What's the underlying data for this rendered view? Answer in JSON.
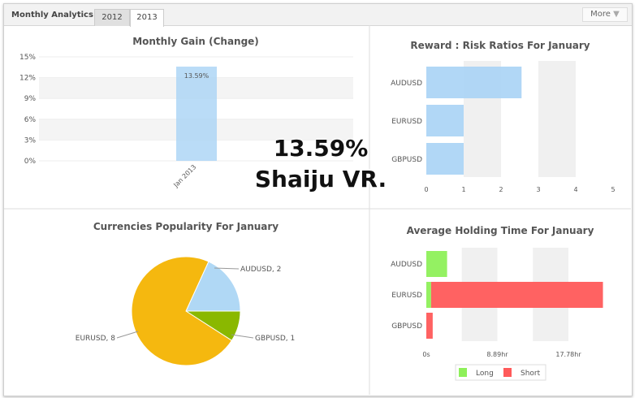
{
  "header": {
    "title": "Monthly Analytics",
    "tabs": [
      "2012",
      "2013"
    ],
    "active_tab": "2013",
    "more_label": "More"
  },
  "watermark": {
    "value": "13.59%",
    "name": "Shaiju VR."
  },
  "chart_data": [
    {
      "type": "bar",
      "title": "Monthly Gain (Change)",
      "categories": [
        "Jan 2013"
      ],
      "values": [
        13.59
      ],
      "data_labels": [
        "13.59%"
      ],
      "yticks": [
        "0%",
        "3%",
        "6%",
        "9%",
        "12%",
        "15%"
      ],
      "ylim": [
        0,
        15
      ],
      "color": "#a9d3f5"
    },
    {
      "type": "bar",
      "orientation": "horizontal",
      "title": "Reward : Risk Ratios For January",
      "categories": [
        "AUDUSD",
        "EURUSD",
        "GBPUSD"
      ],
      "values": [
        2.55,
        1,
        1
      ],
      "xticks": [
        "0",
        "1",
        "2",
        "3",
        "4",
        "5"
      ],
      "xlim": [
        0,
        5
      ],
      "color": "#a9d3f5"
    },
    {
      "type": "pie",
      "title": "Currencies Popularity For January",
      "labels": [
        "AUDUSD, 2",
        "GBPUSD, 1",
        "EURUSD, 8"
      ],
      "categories": [
        "AUDUSD",
        "GBPUSD",
        "EURUSD"
      ],
      "values": [
        2,
        1,
        8
      ],
      "colors": [
        "#b0d8f5",
        "#8ab800",
        "#f5b80f"
      ]
    },
    {
      "type": "bar",
      "orientation": "horizontal",
      "stacked": true,
      "title": "Average Holding Time For January",
      "categories": [
        "AUDUSD",
        "EURUSD",
        "GBPUSD"
      ],
      "series": [
        {
          "name": "Long",
          "values": [
            2.6,
            0.6,
            0
          ],
          "color": "#8ef05a"
        },
        {
          "name": "Short",
          "values": [
            0,
            21.5,
            0.8
          ],
          "color": "#ff5a5a"
        }
      ],
      "xticks": [
        "0s",
        "8.89hr",
        "17.78hr"
      ],
      "xlim": [
        0,
        26.67
      ]
    }
  ]
}
